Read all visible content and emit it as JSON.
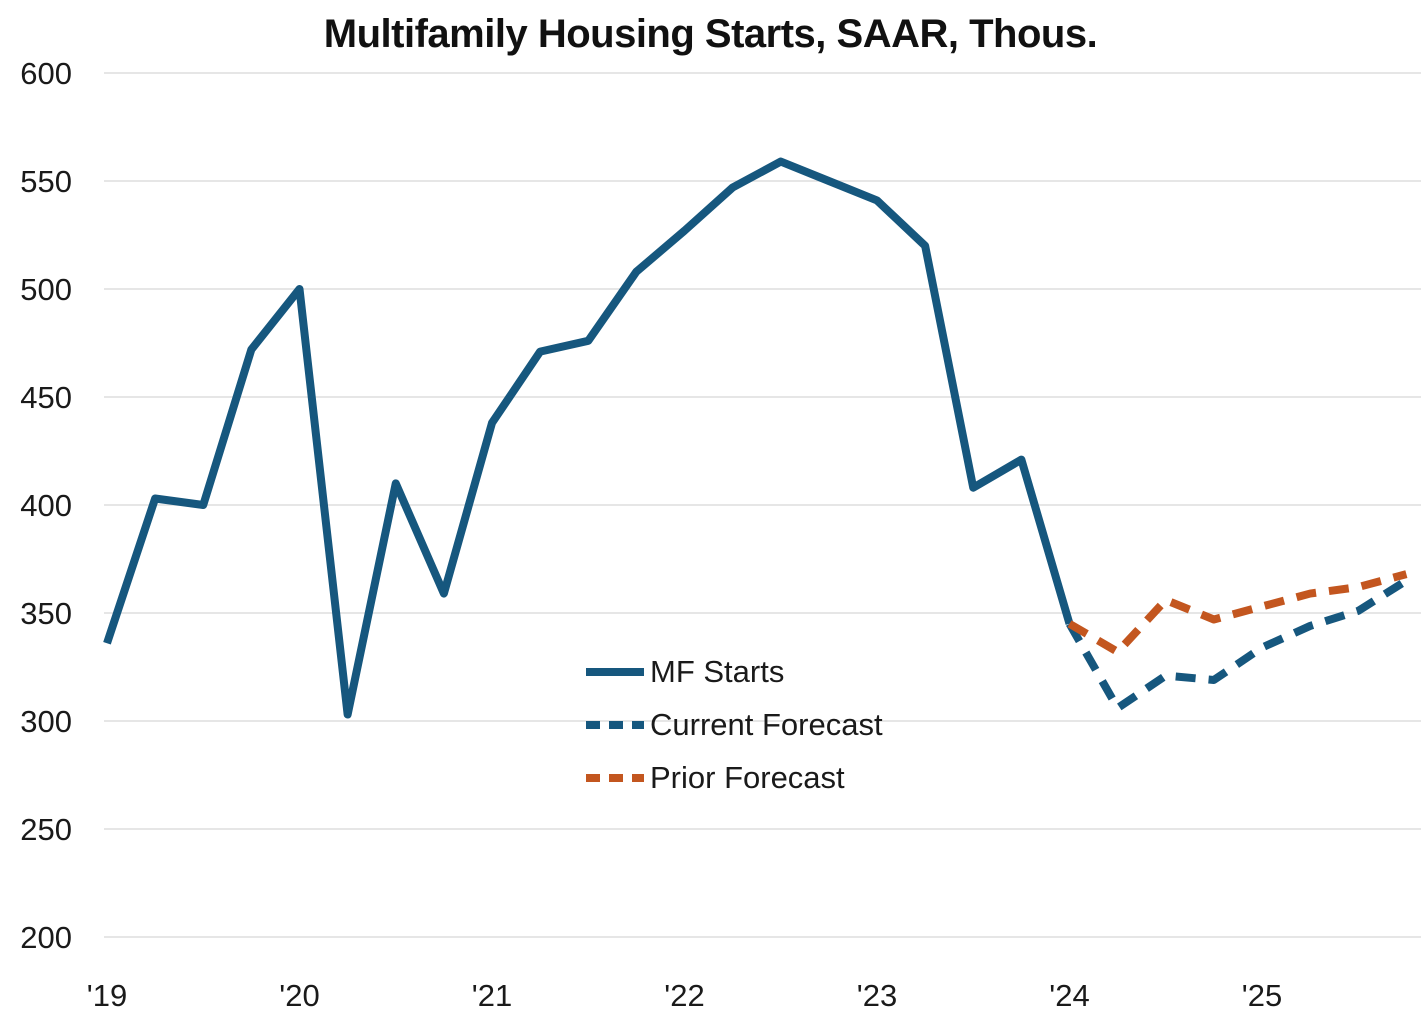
{
  "title": "Multifamily Housing Starts, SAAR, Thous.",
  "chart_data": {
    "type": "line",
    "title": "Multifamily Housing Starts, SAAR, Thous.",
    "grid": "horizontal",
    "legend_position": "inside-lower-middle",
    "ylim": [
      200,
      600
    ],
    "y_ticks": [
      600,
      550,
      500,
      450,
      400,
      350,
      300,
      250,
      200
    ],
    "x_tick_labels": [
      "'19",
      "'20",
      "'21",
      "'22",
      "'23",
      "'24",
      "'25"
    ],
    "x_tick_quarter_index": [
      0,
      4,
      8,
      12,
      16,
      20,
      24
    ],
    "categories": [
      "2019 Q1",
      "2019 Q2",
      "2019 Q3",
      "2019 Q4",
      "2020 Q1",
      "2020 Q2",
      "2020 Q3",
      "2020 Q4",
      "2021 Q1",
      "2021 Q2",
      "2021 Q3",
      "2021 Q4",
      "2022 Q1",
      "2022 Q2",
      "2022 Q3",
      "2022 Q4",
      "2023 Q1",
      "2023 Q2",
      "2023 Q3",
      "2023 Q4",
      "2024 Q1",
      "2024 Q2",
      "2024 Q3",
      "2024 Q4",
      "2025 Q1",
      "2025 Q2",
      "2025 Q3",
      "2025 Q4"
    ],
    "series": [
      {
        "name": "MF Starts",
        "style": "solid",
        "color": "#16577E",
        "start_index": 0,
        "values": [
          336,
          403,
          400,
          472,
          500,
          303,
          410,
          359,
          438,
          471,
          476,
          508,
          527,
          547,
          559,
          550,
          541,
          520,
          408,
          421,
          345
        ]
      },
      {
        "name": "Current Forecast",
        "style": "dashed",
        "color": "#16577E",
        "start_index": 20,
        "values": [
          345,
          306,
          321,
          319,
          334,
          344,
          351,
          365
        ]
      },
      {
        "name": "Prior Forecast",
        "style": "dashed",
        "color": "#C3561F",
        "start_index": 20,
        "values": [
          345,
          332,
          356,
          347,
          353,
          359,
          362,
          368
        ]
      }
    ],
    "colors": {
      "actual_line": "#16577E",
      "current_forecast_line": "#16577E",
      "prior_forecast_line": "#C3561F",
      "gridline": "#dddddd",
      "text": "#1a1a1a"
    }
  }
}
